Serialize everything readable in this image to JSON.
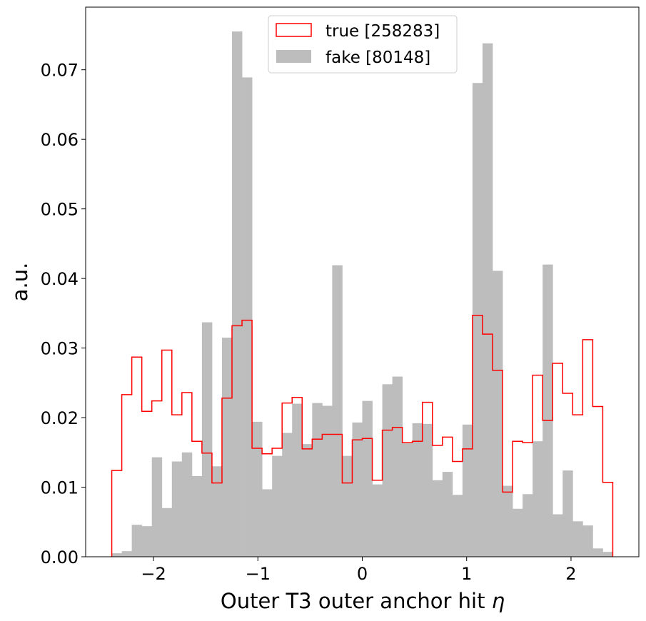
{
  "chart_data": {
    "type": "histogram",
    "xlabel": "Outer T3 outer anchor hit ",
    "xlabel_symbol": "η",
    "ylabel": "a.u.",
    "xlim": [
      -2.65,
      2.65
    ],
    "ylim": [
      0,
      0.079
    ],
    "bin_edges_range": [
      -2.4,
      2.4
    ],
    "bin_count": 50,
    "x_ticks": [
      {
        "value": -2,
        "label": "−2"
      },
      {
        "value": -1,
        "label": "−1"
      },
      {
        "value": 0,
        "label": "0"
      },
      {
        "value": 1,
        "label": "1"
      },
      {
        "value": 2,
        "label": "2"
      }
    ],
    "y_ticks": [
      {
        "value": 0.0,
        "label": "0.00"
      },
      {
        "value": 0.01,
        "label": "0.01"
      },
      {
        "value": 0.02,
        "label": "0.02"
      },
      {
        "value": 0.03,
        "label": "0.03"
      },
      {
        "value": 0.04,
        "label": "0.04"
      },
      {
        "value": 0.05,
        "label": "0.05"
      },
      {
        "value": 0.06,
        "label": "0.06"
      },
      {
        "value": 0.07,
        "label": "0.07"
      }
    ],
    "legend_position": "upper center",
    "series": [
      {
        "name": "true [258283]",
        "style": "step",
        "color": "#ff0000",
        "values": [
          0.0124,
          0.0233,
          0.0287,
          0.0209,
          0.0224,
          0.0297,
          0.0204,
          0.0236,
          0.0166,
          0.0149,
          0.0106,
          0.0228,
          0.0332,
          0.034,
          0.0156,
          0.0148,
          0.0156,
          0.0221,
          0.0229,
          0.0155,
          0.0169,
          0.0176,
          0.0176,
          0.0106,
          0.0168,
          0.017,
          0.011,
          0.0182,
          0.0186,
          0.0164,
          0.0166,
          0.0222,
          0.016,
          0.0172,
          0.0137,
          0.0155,
          0.0347,
          0.032,
          0.0268,
          0.0093,
          0.0166,
          0.0164,
          0.0261,
          0.0196,
          0.0278,
          0.0235,
          0.0204,
          0.0312,
          0.0216,
          0.0107
        ]
      },
      {
        "name": "fake [80148]",
        "style": "filled",
        "color": "#bdbdbd",
        "values": [
          0.0005,
          0.0008,
          0.0046,
          0.0044,
          0.0143,
          0.007,
          0.0137,
          0.015,
          0.0116,
          0.0337,
          0.013,
          0.0315,
          0.0755,
          0.0689,
          0.0194,
          0.0097,
          0.0145,
          0.0178,
          0.022,
          0.0162,
          0.0221,
          0.0217,
          0.0419,
          0.0145,
          0.0193,
          0.0224,
          0.0104,
          0.0248,
          0.0259,
          0.0163,
          0.0192,
          0.0191,
          0.011,
          0.0122,
          0.0089,
          0.019,
          0.0681,
          0.0738,
          0.0411,
          0.0102,
          0.0069,
          0.009,
          0.0166,
          0.042,
          0.0061,
          0.0124,
          0.0051,
          0.0045,
          0.0012,
          0.0007
        ]
      }
    ]
  }
}
